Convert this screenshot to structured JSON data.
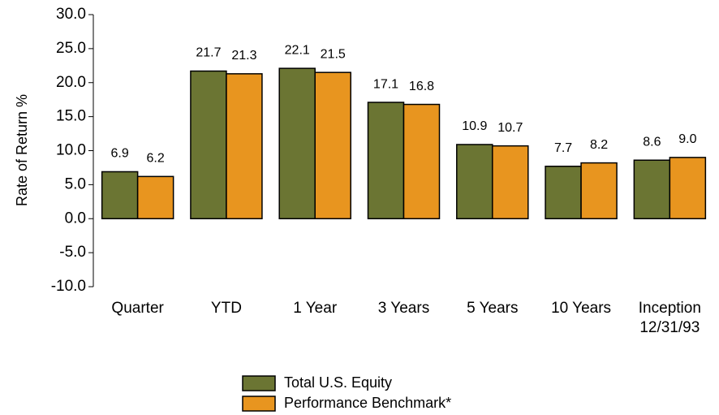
{
  "chart_data": {
    "type": "bar",
    "ylabel": "Rate of Return %",
    "categories": [
      "Quarter",
      "YTD",
      "1 Year",
      "3 Years",
      "5 Years",
      "10 Years",
      "Inception\n12/31/93"
    ],
    "series": [
      {
        "name": "Total U.S. Equity",
        "color": "#6b7533",
        "values": [
          6.9,
          21.7,
          22.1,
          17.1,
          10.9,
          7.7,
          8.6
        ],
        "value_labels": [
          "6.9",
          "21.7",
          "22.1",
          "17.1",
          "10.9",
          "7.7",
          "8.6"
        ]
      },
      {
        "name": "Performance Benchmark*",
        "color": "#e8951f",
        "values": [
          6.2,
          21.3,
          21.5,
          16.8,
          10.7,
          8.2,
          9.0
        ],
        "value_labels": [
          "6.2",
          "21.3",
          "21.5",
          "16.8",
          "10.7",
          "8.2",
          "9.0"
        ]
      }
    ],
    "ylim": [
      -10,
      30
    ],
    "yticks": [
      {
        "value": -10,
        "label": "-10.0"
      },
      {
        "value": -5,
        "label": "-5.0"
      },
      {
        "value": 0,
        "label": "0.0"
      },
      {
        "value": 5,
        "label": "5.0"
      },
      {
        "value": 10,
        "label": "10.0"
      },
      {
        "value": 15,
        "label": "15.0"
      },
      {
        "value": 20,
        "label": "20.0"
      },
      {
        "value": 25,
        "label": "25.0"
      },
      {
        "value": 30,
        "label": "30.0"
      }
    ],
    "grid": false,
    "legend": "bottom"
  }
}
